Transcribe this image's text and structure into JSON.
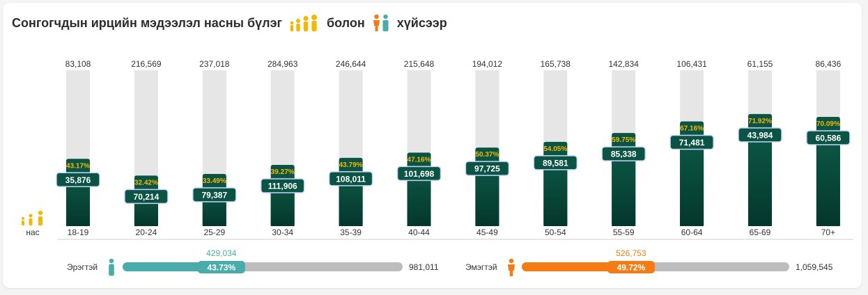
{
  "title": {
    "main": "Сонгогчдын ирцийн мэдээлэл насны бүлэг",
    "connector": "болон",
    "gender": "хүйсээр",
    "people_icon": "people-group-icon",
    "gender_icon": "male-female-icon"
  },
  "chart_data": {
    "type": "bar",
    "ylabel": "нас",
    "categories": [
      "18-19",
      "20-24",
      "25-29",
      "30-34",
      "35-39",
      "40-44",
      "45-49",
      "50-54",
      "55-59",
      "60-64",
      "65-69",
      "70+"
    ],
    "totals": [
      83108,
      216569,
      237018,
      284963,
      246644,
      215648,
      194012,
      165738,
      142834,
      106431,
      61155,
      86436
    ],
    "totals_label": [
      "83,108",
      "216,569",
      "237,018",
      "284,963",
      "246,644",
      "215,648",
      "194,012",
      "165,738",
      "142,834",
      "106,431",
      "61,155",
      "86,436"
    ],
    "voted": [
      35876,
      70214,
      79387,
      111906,
      108011,
      101698,
      97725,
      89581,
      85338,
      71481,
      43984,
      60586
    ],
    "voted_label": [
      "35,876",
      "70,214",
      "79,387",
      "111,906",
      "108,011",
      "101,698",
      "97,725",
      "89,581",
      "85,338",
      "71,481",
      "43,984",
      "60,586"
    ],
    "percent": [
      43.17,
      32.42,
      33.49,
      39.27,
      43.79,
      47.16,
      50.37,
      54.05,
      59.75,
      67.16,
      71.92,
      70.09
    ],
    "percent_label": [
      "43.17%",
      "32.42%",
      "33.49%",
      "39.27%",
      "43.79%",
      "47.16%",
      "50.37%",
      "54.05%",
      "59.75%",
      "67.16%",
      "71.92%",
      "70.09%"
    ],
    "ylim": [
      0,
      100
    ],
    "colors": {
      "track": "#e6e6e6",
      "fill": "#0b5443",
      "percent": "#f5b800",
      "value_text": "#ffffff"
    }
  },
  "gender": {
    "male": {
      "label": "Эрэгтэй",
      "icon": "male-icon",
      "voted_label": "429,034",
      "total_label": "981,011",
      "percent": 43.73,
      "percent_label": "43.73%",
      "color": "#4aabab"
    },
    "female": {
      "label": "Эмэгтэй",
      "icon": "female-icon",
      "voted_label": "526,753",
      "total_label": "1,059,545",
      "percent": 49.72,
      "percent_label": "49.72%",
      "color": "#f57c14"
    },
    "track_color": "#bdbdbd"
  }
}
